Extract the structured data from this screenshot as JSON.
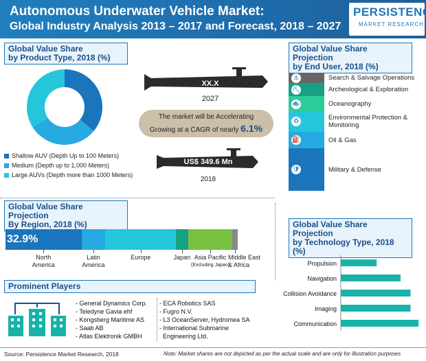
{
  "header": {
    "title_line1": "Autonomous Underwater Vehicle Market:",
    "title_line2": "Global Industry Analysis 2013 – 2017 and Forecast, 2018 – 2027"
  },
  "logo": {
    "line1": "PERSISTENCE",
    "line2": "MARKET RESEARCH"
  },
  "product_type": {
    "title_line1": "Global Value Share",
    "title_line2": "by Product Type, 2018 (%)"
  },
  "end_user": {
    "title_line1": "Global Value Share  Projection",
    "title_line2": "by End User, 2018 (%)"
  },
  "forecast": {
    "value_2027": "XX.X",
    "year_2027": "2027",
    "cagr_text_line1": "The market will be Accelerating",
    "cagr_text_line2": "Growing at a CAGR of nearly ",
    "cagr_value": "6.1%",
    "value_2018": "US$ 349.6 Mn",
    "year_2018": "2018"
  },
  "region": {
    "title_line1": "Global Value Share Projection",
    "title_line2": "By Region, 2018 (%)",
    "highlight": "32.9%"
  },
  "technology": {
    "title_line1": "Global Value Share Projection",
    "title_line2": "by Technology Type, 2018 (%)"
  },
  "players": {
    "title": "Prominent Players",
    "col1": [
      "- General Dynamics Corp.",
      "- Teledyne Gavia ehf",
      "- Kongsberg Maritime AS",
      "- Saab AB",
      "- Atlas Elektronik GMBH"
    ],
    "col2": [
      "- ECA Robotics SAS",
      "- Fugro N.V.",
      "- L3 OceanServer, Hydromea SA",
      "- International Submarine",
      "  Engineering Ltd."
    ]
  },
  "footer": {
    "source": "Source: Persistence Market Research, 2018",
    "note": "Note: Market shares are not depicted as per the actual scale and are only for illustration purposes"
  },
  "colors": {
    "dark_blue": "#1b75bc",
    "mid_blue": "#27a9e1",
    "cyan": "#26c6da",
    "teal": "#16a085",
    "green": "#7ac143",
    "gray": "#888888",
    "teal_bar": "#17b3a8"
  },
  "icons": [
    "search-salvage-icon",
    "archeology-icon",
    "oceanography-icon",
    "environment-icon",
    "oil-gas-icon",
    "military-icon",
    "building-network-icon",
    "submarine-icon"
  ],
  "chart_data": [
    {
      "type": "pie",
      "variant": "donut",
      "categories": [
        "Shallow AUV (Depth Up to 100 Meters)",
        "Medium (Depth up to 1,000 Meters)",
        "Large AUVs (Depth more than 1000 Meters)"
      ],
      "values": [
        36,
        30,
        34
      ],
      "colors": [
        "#1b75bc",
        "#27a9e1",
        "#26c6da"
      ]
    },
    {
      "type": "bar",
      "orientation": "stacked-vertical",
      "categories": [
        "Search & Salvage Operations",
        "Archeological & Exploration",
        "Oceanography",
        "Environmental Protection & Monitoring",
        "Oil & Gas",
        "Military & Defense"
      ],
      "values": [
        9,
        11,
        13,
        17,
        14,
        36
      ],
      "colors": [
        "#666666",
        "#16a085",
        "#2ecc9a",
        "#26c6da",
        "#27a9e1",
        "#1b75bc"
      ]
    },
    {
      "type": "bar",
      "orientation": "stacked-horizontal",
      "categories": [
        "North America",
        "Latin America",
        "Europe",
        "Japan",
        "Asia Pacific (Excluding Japan)",
        "Middle East & Africa"
      ],
      "category_label_lines": [
        [
          "North",
          "America"
        ],
        [
          "Latin",
          "America"
        ],
        [
          "Europe"
        ],
        [
          "Japan"
        ],
        [
          "Asia Pacific",
          "(Excluding Japan)"
        ],
        [
          "Middle East",
          "& Africa"
        ]
      ],
      "values": [
        32.9,
        10.4,
        30.5,
        5.3,
        19.2,
        2.3
      ],
      "colors": [
        "#1b75bc",
        "#27a9e1",
        "#26c6da",
        "#16a085",
        "#7ac143",
        "#888888"
      ]
    },
    {
      "type": "bar",
      "orientation": "horizontal",
      "categories": [
        "Propulsion",
        "Navigation",
        "Collision Avoidance",
        "Imaging",
        "Communication"
      ],
      "values": [
        18,
        30,
        35,
        35,
        39
      ],
      "colors": [
        "#17b3a8"
      ]
    }
  ]
}
